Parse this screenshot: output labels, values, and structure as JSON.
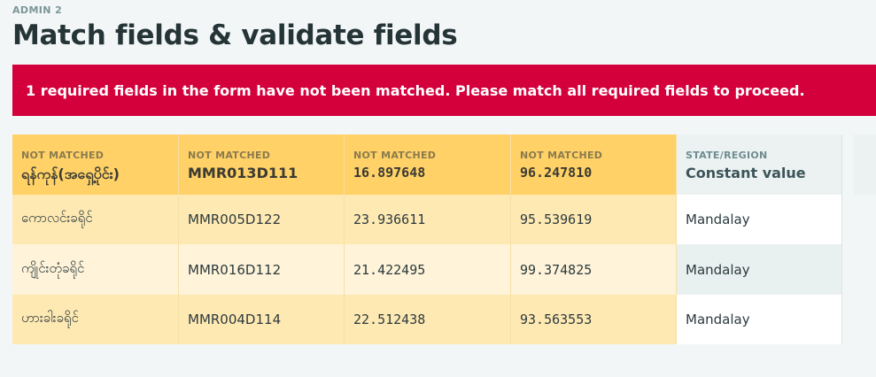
{
  "page": {
    "eyebrow": "ADMIN 2",
    "title": "Match fields & validate fields"
  },
  "alert": {
    "message": "1 required fields in the form have not been matched. Please match all required fields to proceed.",
    "color": "#d4003c"
  },
  "columns": [
    {
      "status": "NOT MATCHED",
      "field": "ရန်ကုန်(အရှေ့ပိုင်း)",
      "values": [
        "ကောလင်းခရိုင်",
        "ကျိုင်းတုံခရိုင်",
        "ဟားခါးခရိုင်"
      ]
    },
    {
      "status": "NOT MATCHED",
      "field": "MMR013D111",
      "values": [
        "MMR005D122",
        "MMR016D112",
        "MMR004D114"
      ]
    },
    {
      "status": "NOT MATCHED",
      "field": "16.897648",
      "values": [
        "23.936611",
        "21.422495",
        "22.512438"
      ]
    },
    {
      "status": "NOT MATCHED",
      "field": "96.247810",
      "values": [
        "95.539619",
        "99.374825",
        "93.563553"
      ]
    },
    {
      "status": "STATE/REGION",
      "field": "Constant value",
      "values": [
        "Mandalay",
        "Mandalay",
        "Mandalay"
      ]
    }
  ],
  "colors": {
    "unmatched_header": "#ffd166",
    "unmatched_row": "#ffe9b3",
    "unmatched_row_alt": "#fff3d9",
    "matched_header": "#ecf2f2"
  }
}
